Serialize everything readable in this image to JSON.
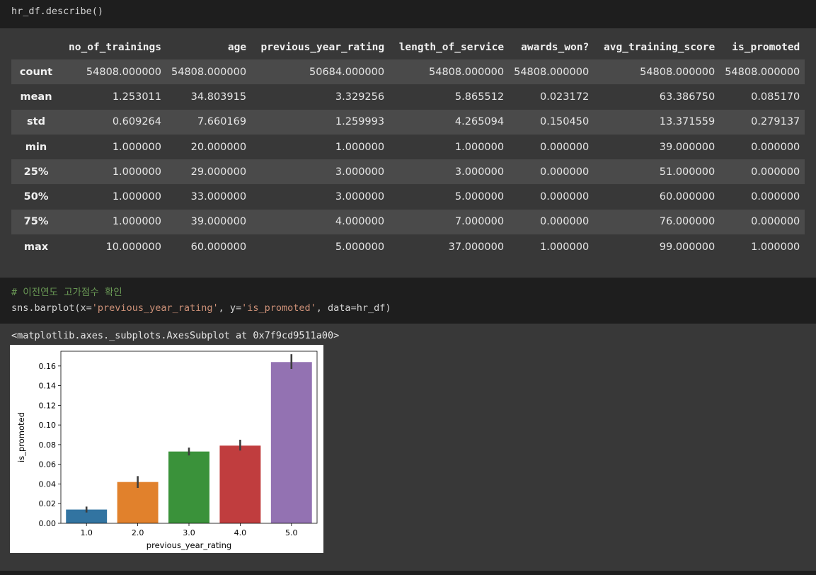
{
  "cells": [
    {
      "code": "hr_df.describe()"
    },
    {
      "comment": "# 이전연도 고가점수 확인",
      "code_parts": [
        "sns.barplot(x=",
        "'previous_year_rating'",
        ", y=",
        "'is_promoted'",
        ", data=hr_df)"
      ]
    }
  ],
  "describe_table": {
    "columns": [
      "no_of_trainings",
      "age",
      "previous_year_rating",
      "length_of_service",
      "awards_won?",
      "avg_training_score",
      "is_promoted"
    ],
    "rows": [
      {
        "label": "count",
        "values": [
          "54808.000000",
          "54808.000000",
          "50684.000000",
          "54808.000000",
          "54808.000000",
          "54808.000000",
          "54808.000000"
        ]
      },
      {
        "label": "mean",
        "values": [
          "1.253011",
          "34.803915",
          "3.329256",
          "5.865512",
          "0.023172",
          "63.386750",
          "0.085170"
        ]
      },
      {
        "label": "std",
        "values": [
          "0.609264",
          "7.660169",
          "1.259993",
          "4.265094",
          "0.150450",
          "13.371559",
          "0.279137"
        ]
      },
      {
        "label": "min",
        "values": [
          "1.000000",
          "20.000000",
          "1.000000",
          "1.000000",
          "0.000000",
          "39.000000",
          "0.000000"
        ]
      },
      {
        "label": "25%",
        "values": [
          "1.000000",
          "29.000000",
          "3.000000",
          "3.000000",
          "0.000000",
          "51.000000",
          "0.000000"
        ]
      },
      {
        "label": "50%",
        "values": [
          "1.000000",
          "33.000000",
          "3.000000",
          "5.000000",
          "0.000000",
          "60.000000",
          "0.000000"
        ]
      },
      {
        "label": "75%",
        "values": [
          "1.000000",
          "39.000000",
          "4.000000",
          "7.000000",
          "0.000000",
          "76.000000",
          "0.000000"
        ]
      },
      {
        "label": "max",
        "values": [
          "10.000000",
          "60.000000",
          "5.000000",
          "37.000000",
          "1.000000",
          "99.000000",
          "1.000000"
        ]
      }
    ]
  },
  "output_repr": "<matplotlib.axes._subplots.AxesSubplot at 0x7f9cd9511a00>",
  "chart_data": {
    "type": "bar",
    "categories": [
      "1.0",
      "2.0",
      "3.0",
      "4.0",
      "5.0"
    ],
    "values": [
      0.014,
      0.042,
      0.073,
      0.079,
      0.164
    ],
    "error_low": [
      0.011,
      0.036,
      0.069,
      0.074,
      0.157
    ],
    "error_high": [
      0.017,
      0.048,
      0.077,
      0.085,
      0.172
    ],
    "colors": [
      "#3274a1",
      "#e1812c",
      "#3a923a",
      "#c03d3e",
      "#9372b2"
    ],
    "xlabel": "previous_year_rating",
    "ylabel": "is_promoted",
    "ylim": [
      0,
      0.175
    ],
    "yticks": [
      "0.00",
      "0.02",
      "0.04",
      "0.06",
      "0.08",
      "0.10",
      "0.12",
      "0.14",
      "0.16"
    ],
    "ytick_values": [
      0,
      0.02,
      0.04,
      0.06,
      0.08,
      0.1,
      0.12,
      0.14,
      0.16
    ],
    "grid": false,
    "title": ""
  }
}
